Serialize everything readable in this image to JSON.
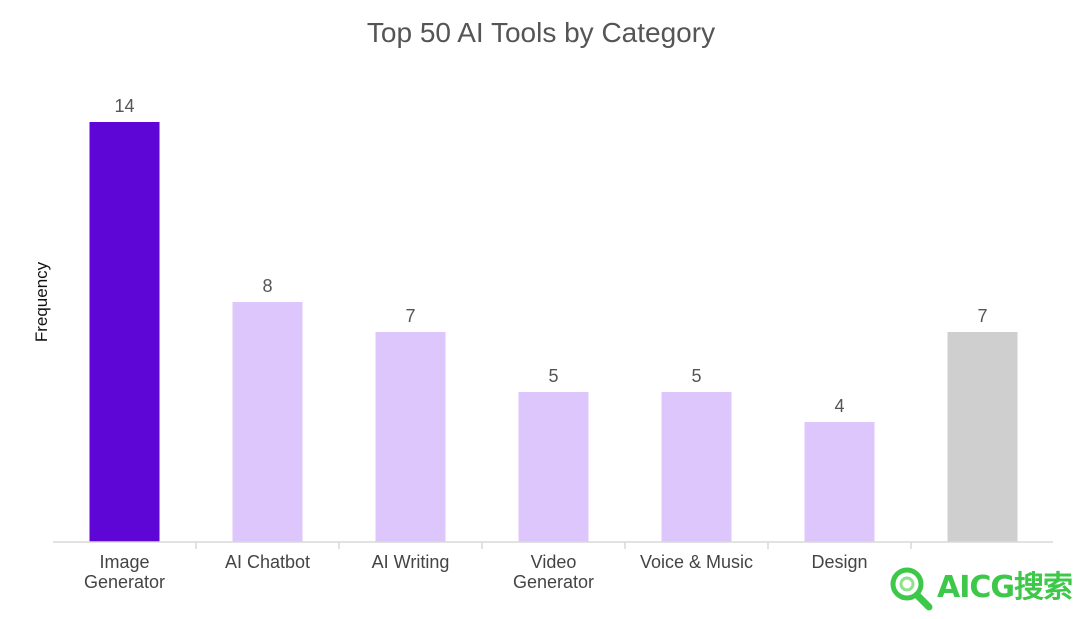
{
  "chart_data": {
    "type": "bar",
    "title": "Top 50 AI Tools by Category",
    "xlabel": "",
    "ylabel": "Frequency",
    "categories": [
      "Image Generator",
      "AI Chatbot",
      "AI Writing",
      "Video Generator",
      "Voice & Music",
      "Design",
      ""
    ],
    "values": [
      14,
      8,
      7,
      5,
      5,
      4,
      7
    ],
    "colors": [
      "#5e06d6",
      "#dcc6fb",
      "#dcc6fb",
      "#dcc6fb",
      "#dcc6fb",
      "#dcc6fb",
      "#d0cfd0"
    ],
    "ylim": [
      0,
      14
    ],
    "grid": false,
    "legend": "none",
    "data_labels": true
  },
  "watermark": {
    "text": "AICG搜索",
    "color": "#3dc84a",
    "icon": "magnifier-icon"
  }
}
